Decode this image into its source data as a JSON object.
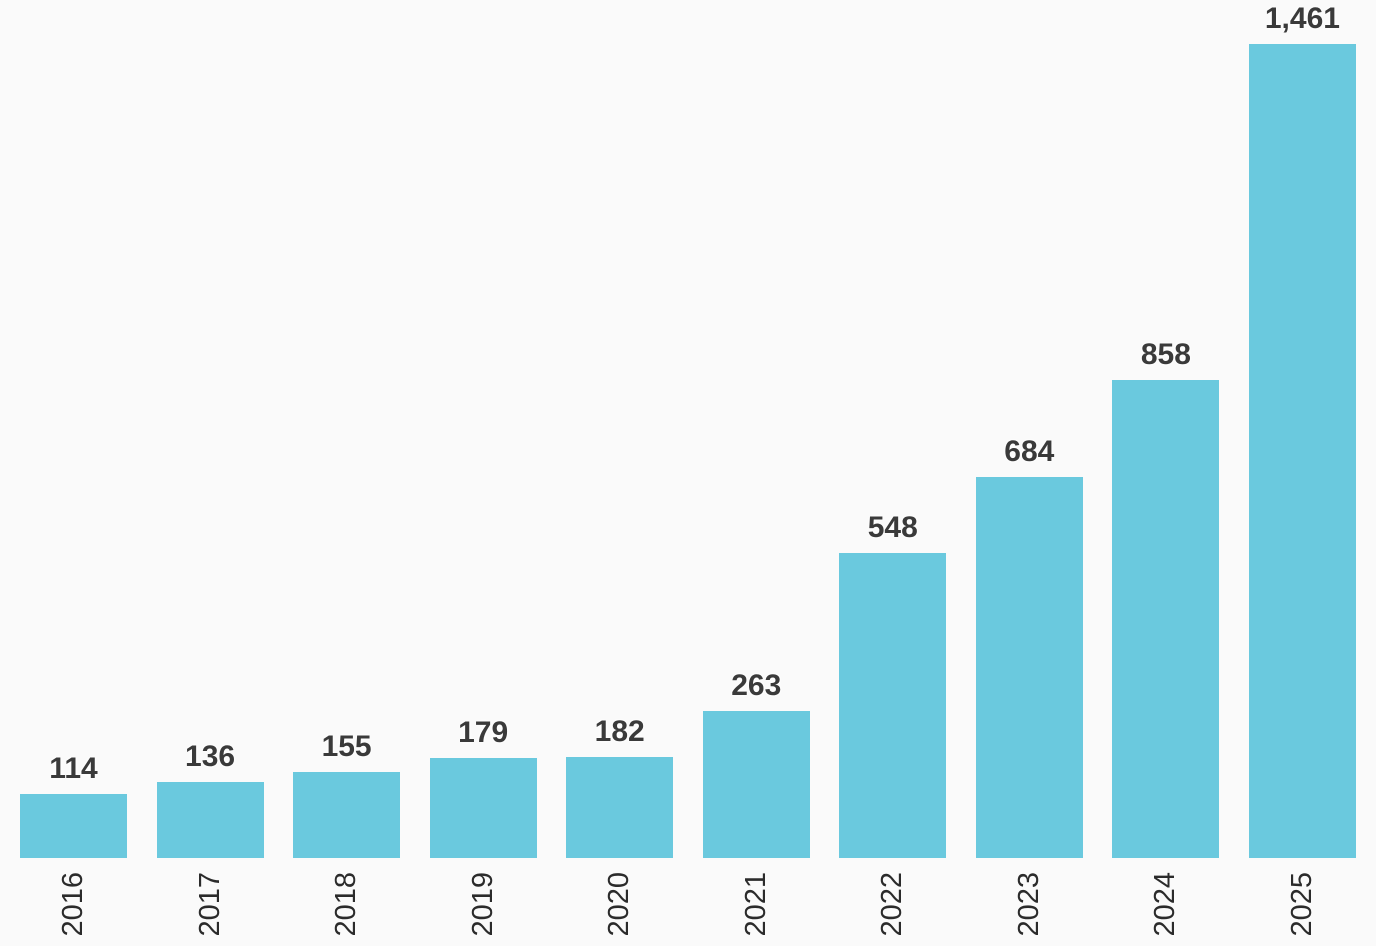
{
  "chart_data": {
    "type": "bar",
    "title": "",
    "xlabel": "",
    "ylabel": "",
    "categories": [
      "2016",
      "2017",
      "2018",
      "2019",
      "2020",
      "2021",
      "2022",
      "2023",
      "2024",
      "2025"
    ],
    "values": [
      114,
      136,
      155,
      179,
      182,
      263,
      548,
      684,
      858,
      1461
    ],
    "value_labels": [
      "114",
      "136",
      "155",
      "179",
      "182",
      "263",
      "548",
      "684",
      "858",
      "1,461"
    ],
    "ylim": [
      0,
      1461
    ],
    "grid": false,
    "legend": null,
    "data_labels_position": "above-bars",
    "x_tick_label_rotation_deg": 90,
    "colors": {
      "bar": "#6AC9DE",
      "value_label_text": "#3A3A3A",
      "year_label_text": "#2B2B2B",
      "background": "#FAFAFA"
    }
  }
}
